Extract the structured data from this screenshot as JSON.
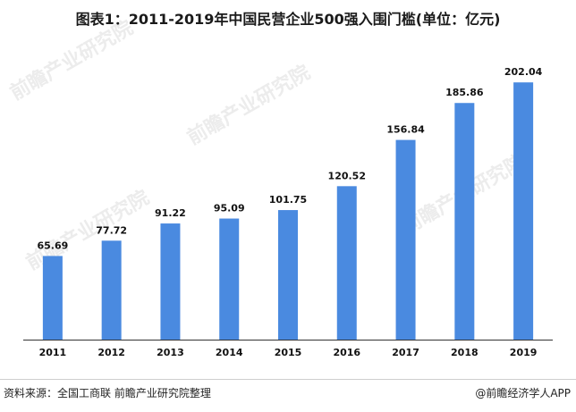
{
  "title": "图表1：2011-2019年中国民营企业500强入围门槛(单位：亿元)",
  "footer": {
    "source": "资料来源：全国工商联 前瞻产业研究院整理",
    "credit": "@前瞻经济学人APP"
  },
  "colors": {
    "bar": "#4a8ae0",
    "axis": "#333333"
  },
  "chart_data": {
    "type": "bar",
    "title": "图表1：2011-2019年中国民营企业500强入围门槛(单位：亿元)",
    "categories": [
      "2011",
      "2012",
      "2013",
      "2014",
      "2015",
      "2016",
      "2017",
      "2018",
      "2019"
    ],
    "values": [
      65.69,
      77.72,
      91.22,
      95.09,
      101.75,
      120.52,
      156.84,
      185.86,
      202.04
    ],
    "value_labels": [
      "65.69",
      "77.72",
      "91.22",
      "95.09",
      "101.75",
      "120.52",
      "156.84",
      "185.86",
      "202.04"
    ],
    "xlabel": "",
    "ylabel": "",
    "ylim": [
      0,
      212
    ],
    "grid": false,
    "legend": "none"
  }
}
